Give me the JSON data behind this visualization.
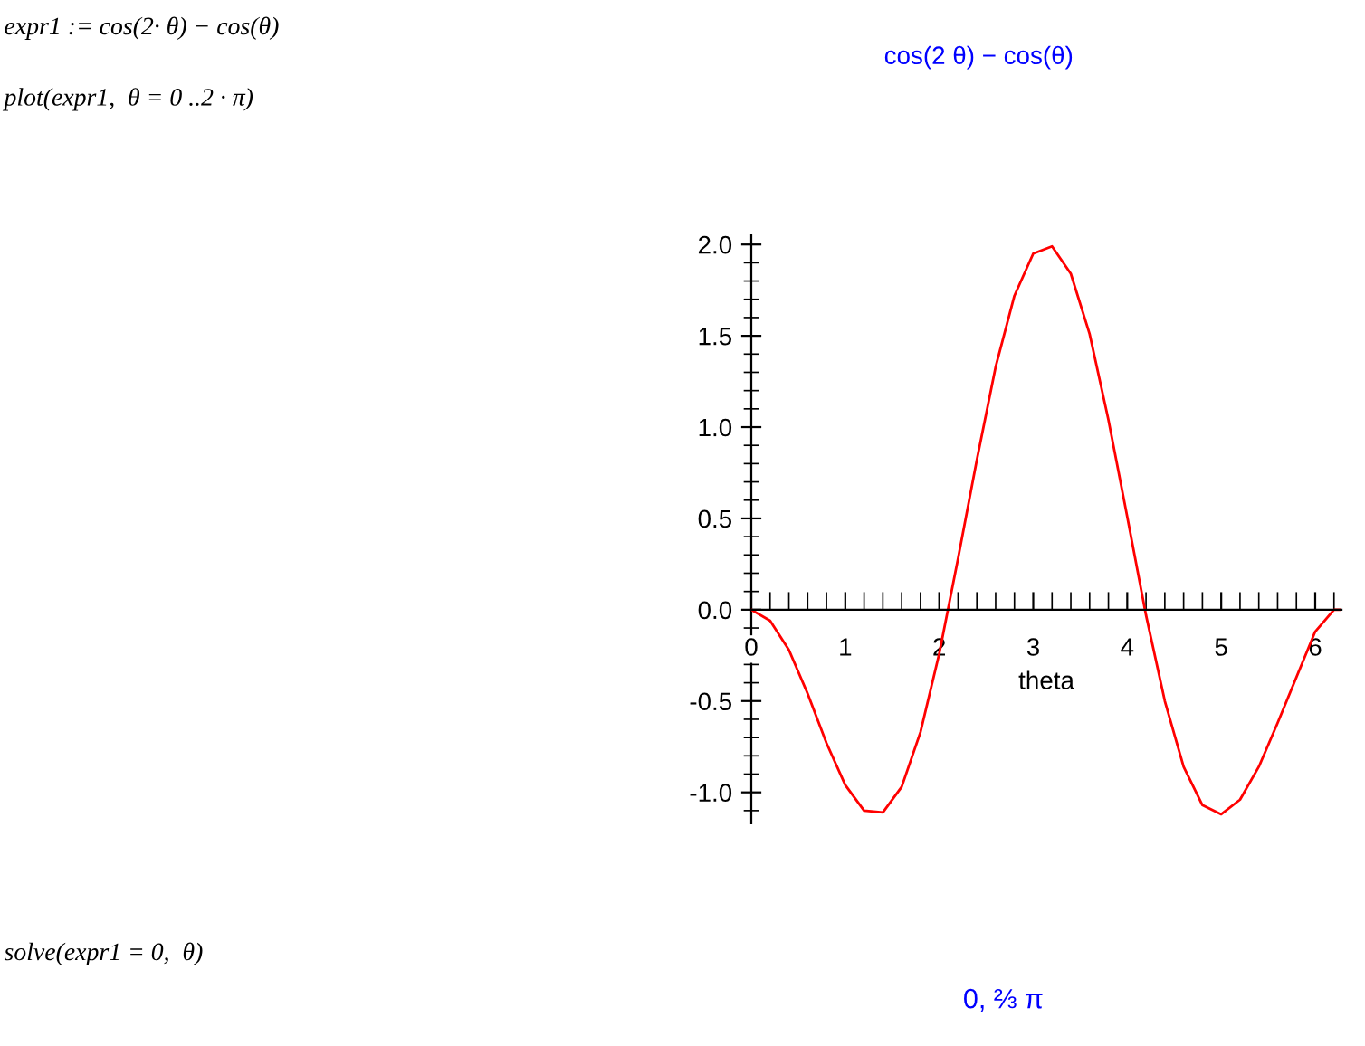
{
  "chart_data": {
    "type": "line",
    "title": "cos(2 θ) − cos(θ)",
    "xlabel": "theta",
    "annotations": [
      "expr1 := cos(2· θ) − cos(θ)",
      "plot(expr1,  θ = 0 ..2 · π)",
      "solve(expr1 = 0,  θ)",
      "0, ⅔ π"
    ],
    "x": [
      0,
      0.2,
      0.4,
      0.6,
      0.8,
      1.0,
      1.2,
      1.4,
      1.6,
      1.8,
      2.0,
      2.2,
      2.4,
      2.6,
      2.8,
      3.0,
      3.2,
      3.4,
      3.6,
      3.8,
      4.0,
      4.2,
      4.4,
      4.6,
      4.8,
      5.0,
      5.2,
      5.4,
      5.6,
      5.8,
      6.0,
      6.2,
      6.28
    ],
    "series": [
      {
        "color": "#ff0000",
        "values": [
          0,
          -0.06,
          -0.22,
          -0.46,
          -0.73,
          -0.96,
          -1.1,
          -1.11,
          -0.97,
          -0.67,
          -0.24,
          0.28,
          0.82,
          1.33,
          1.72,
          1.95,
          1.99,
          1.84,
          1.51,
          1.04,
          0.51,
          -0.03,
          -0.5,
          -0.86,
          -1.07,
          -1.12,
          -1.04,
          -0.86,
          -0.62,
          -0.37,
          -0.12,
          0.0,
          0
        ]
      }
    ],
    "xlim": [
      0,
      6.28
    ],
    "ylim": [
      -1.17,
      2.05
    ],
    "xticks": [
      0,
      1,
      2,
      3,
      4,
      5,
      6
    ],
    "yticks": [
      {
        "value": -1,
        "label": "-1.0"
      },
      {
        "value": -0.5,
        "label": "-0.5"
      },
      {
        "value": 0,
        "label": "0.0"
      },
      {
        "value": 0.5,
        "label": "0.5"
      },
      {
        "value": 1,
        "label": "1.0"
      },
      {
        "value": 1.5,
        "label": "1.5"
      },
      {
        "value": 2,
        "label": "2.0"
      }
    ],
    "grid": false,
    "legend": false,
    "marker": "none",
    "line_style": "solid"
  }
}
